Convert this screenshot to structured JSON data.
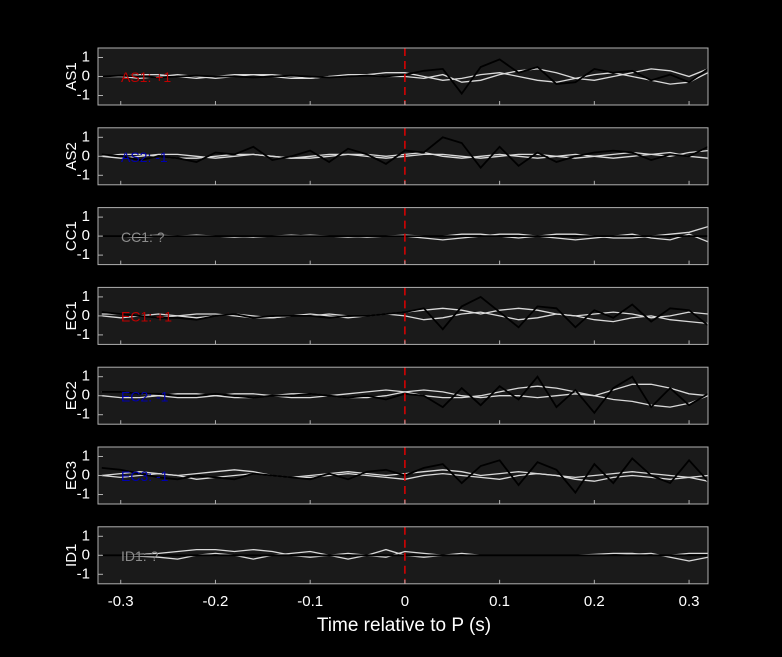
{
  "chart_data": {
    "type": "line",
    "xlabel": "Time relative to P (s)",
    "xlim": [
      -0.324,
      0.32
    ],
    "xticks": [
      -0.3,
      -0.2,
      -0.1,
      0,
      0.1,
      0.2,
      0.3
    ],
    "vline": 0,
    "vline_color": "#e00000",
    "x": [
      -0.32,
      -0.3,
      -0.28,
      -0.26,
      -0.24,
      -0.22,
      -0.2,
      -0.18,
      -0.16,
      -0.14,
      -0.12,
      -0.1,
      -0.08,
      -0.06,
      -0.04,
      -0.02,
      0,
      0.02,
      0.04,
      0.06,
      0.08,
      0.1,
      0.12,
      0.14,
      0.16,
      0.18,
      0.2,
      0.22,
      0.24,
      0.26,
      0.28,
      0.3,
      0.32
    ],
    "panels": [
      {
        "ylabel": "AS1",
        "annotation": "AS1: +1",
        "annotation_color": "#c00000",
        "ylim": [
          -1.5,
          1.5
        ],
        "yticks": [
          -1,
          0,
          1
        ],
        "series": [
          {
            "color": "#d9d9d9",
            "values": [
              0,
              0,
              0.1,
              0.1,
              0,
              -0.1,
              0,
              0.1,
              0.1,
              0,
              -0.1,
              -0.1,
              0,
              0.1,
              0.1,
              0,
              0,
              -0.1,
              0.1,
              -0.3,
              -0.2,
              0.1,
              0.3,
              0.4,
              0.2,
              -0.1,
              -0.2,
              0,
              0.2,
              0.4,
              0.3,
              0,
              0.4
            ]
          },
          {
            "color": "#d9d9d9",
            "values": [
              0,
              0,
              -0.1,
              0,
              0.1,
              0,
              -0.1,
              0,
              0.1,
              0.1,
              0,
              -0.1,
              0,
              0,
              0.1,
              0.2,
              0.2,
              0,
              -0.2,
              -0.1,
              0.1,
              0.2,
              0,
              -0.2,
              -0.3,
              -0.1,
              0.1,
              0.2,
              0,
              -0.2,
              -0.4,
              -0.3,
              0.2
            ]
          },
          {
            "color": "#000000",
            "values": [
              0,
              0.05,
              0,
              -0.05,
              0,
              0.05,
              0,
              0,
              -0.05,
              0,
              0.05,
              0,
              -0.05,
              0,
              0.05,
              0,
              0.1,
              0.3,
              0.4,
              -0.9,
              0.5,
              0.9,
              0.2,
              0.5,
              -0.4,
              -0.3,
              0.4,
              0.2,
              0.3,
              -0.2,
              0.1,
              -0.3,
              0.4
            ]
          }
        ]
      },
      {
        "ylabel": "AS2",
        "annotation": "AS2: -1",
        "annotation_color": "#0000b0",
        "ylim": [
          -1.5,
          1.5
        ],
        "yticks": [
          -1,
          0,
          1
        ],
        "series": [
          {
            "color": "#d9d9d9",
            "values": [
              0,
              0.1,
              0.1,
              0,
              -0.1,
              -0.1,
              0,
              0.1,
              0.1,
              0,
              -0.1,
              0,
              0.1,
              0.1,
              0,
              -0.1,
              0,
              0.1,
              0.1,
              0,
              -0.1,
              0,
              0.1,
              0.1,
              0,
              -0.1,
              0,
              0.1,
              0.2,
              0.1,
              0,
              0.2,
              0.3
            ]
          },
          {
            "color": "#d9d9d9",
            "values": [
              0,
              -0.1,
              0,
              0.1,
              0.1,
              0,
              -0.1,
              0,
              0.1,
              0,
              -0.1,
              -0.1,
              0,
              0.1,
              0.1,
              0,
              0.1,
              0.2,
              0,
              -0.1,
              0,
              0.1,
              0,
              -0.1,
              0,
              0.1,
              0,
              -0.1,
              0,
              0.1,
              0.2,
              0,
              -0.1
            ]
          },
          {
            "color": "#000000",
            "values": [
              0.1,
              0,
              -0.2,
              0,
              -0.1,
              -0.3,
              0.2,
              0.1,
              0.5,
              -0.2,
              0,
              0.3,
              -0.3,
              0.4,
              0.1,
              -0.4,
              0.3,
              0.2,
              1,
              0.7,
              -0.6,
              0.5,
              -0.5,
              0.2,
              -0.3,
              0,
              0.2,
              0.3,
              0.2,
              -0.2,
              0.1,
              0,
              0.5
            ]
          }
        ]
      },
      {
        "ylabel": "CC1",
        "annotation": "CC1: ?",
        "annotation_color": "#8c8c8c",
        "ylim": [
          -1.5,
          1.5
        ],
        "yticks": [
          -1,
          0,
          1
        ],
        "series": [
          {
            "color": "#d9d9d9",
            "values": [
              0,
              0,
              0,
              0.05,
              0,
              0,
              0,
              -0.05,
              0,
              0,
              0.05,
              0,
              0,
              -0.05,
              0,
              0,
              0.05,
              0,
              0,
              0.1,
              0.1,
              0,
              -0.1,
              0,
              0.1,
              0.1,
              0,
              -0.1,
              -0.1,
              0,
              0.1,
              0.2,
              0.5
            ]
          },
          {
            "color": "#d9d9d9",
            "values": [
              0,
              0,
              -0.05,
              0,
              0,
              0.05,
              0,
              0,
              -0.05,
              0,
              0,
              0.05,
              0,
              0,
              -0.05,
              0,
              0,
              -0.1,
              -0.2,
              -0.1,
              0,
              0.1,
              0.1,
              0,
              -0.1,
              -0.2,
              -0.1,
              0,
              0.1,
              -0.1,
              -0.2,
              0.1,
              -0.3
            ]
          },
          {
            "color": "#000000",
            "values": [
              0,
              0,
              0,
              0,
              0,
              0,
              0,
              0,
              0,
              0,
              0,
              0,
              0,
              0,
              0,
              0,
              0,
              0,
              0,
              0,
              0,
              0,
              0,
              0,
              0,
              0,
              0,
              0,
              0,
              0,
              0,
              0,
              0
            ]
          }
        ]
      },
      {
        "ylabel": "EC1",
        "annotation": "EC1: +1",
        "annotation_color": "#c00000",
        "ylim": [
          -1.5,
          1.5
        ],
        "yticks": [
          -1,
          0,
          1
        ],
        "series": [
          {
            "color": "#d9d9d9",
            "values": [
              0.1,
              0.1,
              0,
              -0.1,
              0,
              0.1,
              0.1,
              0,
              -0.1,
              -0.1,
              0,
              0.1,
              0,
              -0.1,
              0,
              0.1,
              0.2,
              0.3,
              0.4,
              0.3,
              0.1,
              0.3,
              0.4,
              0.3,
              0.1,
              0,
              0.1,
              0.2,
              0.1,
              -0.1,
              0,
              0.2,
              0.1
            ]
          },
          {
            "color": "#d9d9d9",
            "values": [
              0,
              -0.1,
              0,
              0.1,
              0,
              -0.1,
              0,
              0.1,
              0,
              -0.1,
              0,
              0,
              0.1,
              0,
              0,
              0.1,
              0,
              -0.2,
              -0.1,
              0.1,
              0.2,
              0,
              -0.2,
              -0.1,
              0.1,
              0,
              -0.2,
              -0.3,
              -0.1,
              0,
              -0.2,
              -0.3,
              -0.4
            ]
          },
          {
            "color": "#000000",
            "values": [
              0.2,
              0.1,
              0,
              -0.1,
              -0.1,
              -0.2,
              0,
              0.1,
              -0.1,
              0,
              0,
              0,
              -0.1,
              0,
              0,
              0.1,
              0.2,
              0.4,
              -0.7,
              0.5,
              1,
              0.2,
              -0.6,
              0.5,
              0.4,
              -0.6,
              0.3,
              -0.1,
              0.6,
              -0.3,
              0.4,
              0.3,
              -0.5
            ]
          }
        ]
      },
      {
        "ylabel": "EC2",
        "annotation": "EC2: -1",
        "annotation_color": "#0000b0",
        "ylim": [
          -1.5,
          1.5
        ],
        "yticks": [
          -1,
          0,
          1
        ],
        "series": [
          {
            "color": "#d9d9d9",
            "values": [
              0.2,
              0.2,
              0.1,
              0,
              -0.1,
              -0.1,
              0,
              0.1,
              0.1,
              0,
              -0.1,
              -0.1,
              0,
              0.1,
              0.2,
              0.3,
              0.2,
              0,
              -0.1,
              -0.1,
              0,
              0.2,
              0.4,
              0.5,
              0.4,
              0.2,
              0,
              0.3,
              0.6,
              0.6,
              0.4,
              0.1,
              0
            ]
          },
          {
            "color": "#d9d9d9",
            "values": [
              0,
              -0.1,
              -0.1,
              0,
              0.1,
              0.1,
              0,
              -0.1,
              -0.1,
              0,
              0.1,
              0.1,
              0,
              -0.1,
              -0.1,
              0,
              0.2,
              0.3,
              0.2,
              0,
              -0.1,
              0,
              0,
              -0.1,
              0,
              0.1,
              0,
              -0.2,
              -0.3,
              -0.5,
              -0.6,
              -0.4,
              0
            ]
          },
          {
            "color": "#000000",
            "values": [
              0.2,
              0.2,
              0.1,
              0.1,
              0,
              0,
              0.1,
              0,
              -0.1,
              0,
              0,
              0.1,
              0,
              -0.1,
              0,
              -0.2,
              0.1,
              0,
              -0.6,
              0.4,
              -0.5,
              0.5,
              -0.2,
              1,
              -0.6,
              0.3,
              -0.9,
              0.4,
              1,
              -0.6,
              0.4,
              -0.5,
              0.1
            ]
          }
        ]
      },
      {
        "ylabel": "EC3",
        "annotation": "EC3: -1",
        "annotation_color": "#0000b0",
        "ylim": [
          -1.5,
          1.5
        ],
        "yticks": [
          -1,
          0,
          1
        ],
        "series": [
          {
            "color": "#d9d9d9",
            "values": [
              0,
              0.1,
              0.2,
              0.1,
              0,
              0.1,
              0.2,
              0.3,
              0.2,
              0,
              -0.1,
              0,
              0.1,
              0.2,
              0.1,
              0,
              0.1,
              0.2,
              0.3,
              0.2,
              0,
              0.1,
              0.2,
              0.1,
              0,
              -0.1,
              0,
              0.1,
              0.2,
              0.1,
              0,
              -0.1,
              0
            ]
          },
          {
            "color": "#d9d9d9",
            "values": [
              0,
              -0.1,
              0,
              0.1,
              0,
              -0.2,
              -0.1,
              0,
              0.1,
              0,
              -0.1,
              -0.1,
              0,
              0.1,
              0,
              -0.1,
              -0.2,
              0,
              0.1,
              0,
              -0.1,
              -0.2,
              0,
              0.1,
              0,
              -0.2,
              -0.3,
              -0.1,
              0,
              -0.1,
              -0.2,
              -0.1,
              -0.3
            ]
          },
          {
            "color": "#000000",
            "values": [
              0.4,
              0.3,
              0.1,
              -0.1,
              -0.2,
              0,
              -0.1,
              -0.2,
              0.1,
              0,
              -0.1,
              -0.2,
              0.1,
              -0.2,
              0.2,
              0.3,
              0,
              0.4,
              0.6,
              -0.4,
              0.5,
              0.8,
              -0.5,
              0.7,
              0.3,
              -0.9,
              0.6,
              -0.4,
              0.9,
              0,
              -0.4,
              0.8,
              -0.3
            ]
          }
        ]
      },
      {
        "ylabel": "ID1",
        "annotation": "ID1: ?",
        "annotation_color": "#8c8c8c",
        "ylim": [
          -1.5,
          1.5
        ],
        "yticks": [
          -1,
          0,
          1
        ],
        "series": [
          {
            "color": "#d9d9d9",
            "values": [
              0,
              0,
              0.05,
              0.1,
              0.2,
              0.3,
              0.3,
              0.2,
              0.3,
              0.2,
              0,
              -0.1,
              0,
              0.1,
              0,
              -0.1,
              0.2,
              0.1,
              0,
              0.1,
              0,
              0,
              0,
              0,
              0,
              0,
              0.05,
              0.1,
              0.1,
              0,
              0,
              0.1,
              0.1
            ]
          },
          {
            "color": "#d9d9d9",
            "values": [
              0,
              0,
              -0.05,
              -0.1,
              -0.2,
              0,
              0.1,
              0,
              -0.2,
              0,
              0.1,
              0.2,
              0,
              -0.2,
              0,
              0.3,
              0,
              -0.1,
              0,
              0,
              0,
              0,
              0,
              0,
              0,
              0,
              0,
              0,
              0.05,
              0.1,
              -0.1,
              -0.3,
              -0.1
            ]
          },
          {
            "color": "#000000",
            "values": [
              0,
              0,
              0,
              0,
              0,
              0,
              0,
              0,
              0,
              0,
              0,
              0,
              0,
              0,
              0,
              0,
              0,
              0,
              0,
              0,
              0,
              0,
              0,
              0,
              0,
              0,
              0,
              0,
              0,
              0,
              0,
              0,
              0
            ]
          }
        ]
      }
    ]
  }
}
